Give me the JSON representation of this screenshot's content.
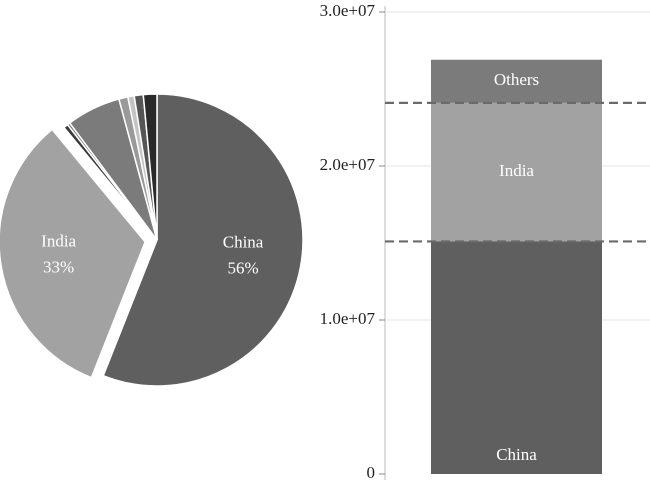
{
  "chart_data": [
    {
      "type": "pie",
      "categories": [
        "China",
        "India",
        null,
        null,
        null,
        null,
        null,
        null,
        null
      ],
      "values": [
        56,
        33,
        0.5,
        0.3,
        6,
        1,
        0.7,
        1,
        1.5
      ],
      "value_labels": [
        "56%",
        "33%",
        null,
        null,
        null,
        null,
        null,
        null,
        null
      ],
      "colors": [
        "#5f5f5f",
        "#a2a2a2",
        "#3a3a3a",
        "#777777",
        "#7b7b7b",
        "#9a9a9a",
        "#c4c4c4",
        "#555555",
        "#2a2a2a"
      ],
      "explode": [
        0,
        1,
        0,
        0,
        0,
        0,
        0,
        0,
        0
      ]
    },
    {
      "type": "bar",
      "stacked": true,
      "categories": [
        null
      ],
      "series": [
        {
          "name": "China",
          "color": "#5f5f5f",
          "values": [
            15100000
          ]
        },
        {
          "name": "India",
          "color": "#a2a2a2",
          "values": [
            9000000
          ]
        },
        {
          "name": "Others",
          "color": "#7b7b7b",
          "values": [
            2800000
          ]
        }
      ],
      "ylim": [
        0,
        30000000
      ],
      "yticks": [
        0,
        {
          "value": 10000000,
          "label": "1.0e+07"
        },
        {
          "value": 20000000,
          "label": "2.0e+07"
        },
        {
          "value": 30000000,
          "label": "3.0e+07"
        }
      ],
      "grid": true
    }
  ]
}
